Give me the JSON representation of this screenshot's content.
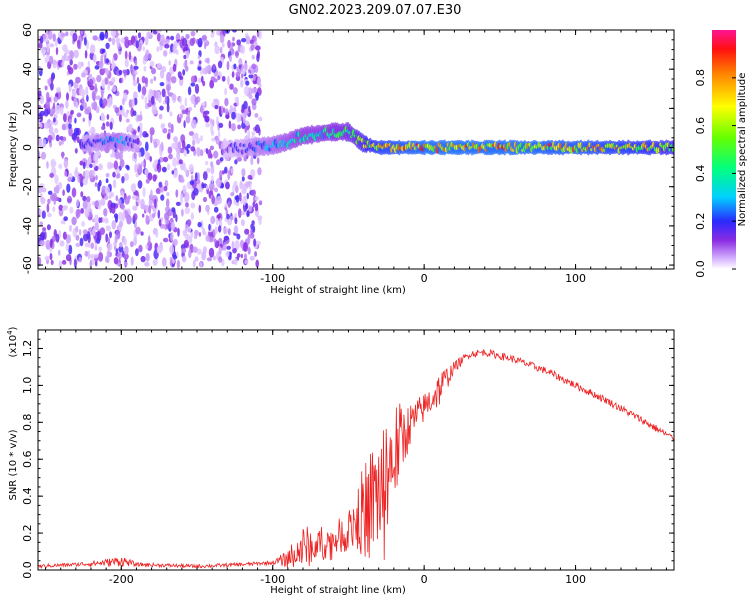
{
  "title": "GN02.2023.209.07.07.E30",
  "chart_data": [
    {
      "type": "heatmap",
      "xlabel": "Height of straight line (km)",
      "ylabel": "Frequency (Hz)",
      "xlim": [
        -255,
        165
      ],
      "ylim": [
        -62,
        60
      ],
      "xticks": [
        -200,
        -100,
        0,
        100
      ],
      "xtick_labels": [
        "-200",
        "-100",
        "0",
        "100"
      ],
      "yticks": [
        60,
        40,
        20,
        0,
        -20,
        -40,
        -60
      ],
      "ytick_labels": [
        "60",
        "40",
        "20",
        "0",
        "-20",
        "-40",
        "-60"
      ],
      "colorbar": {
        "label": "Normalized spectral amplitude",
        "ticks": [
          0.0,
          0.2,
          0.4,
          0.6,
          0.8
        ],
        "tick_labels": [
          "0.0",
          "0.2",
          "0.4",
          "0.6",
          "0.8"
        ],
        "range": [
          0,
          1
        ],
        "colormap": "rainbow-white-purple-blue-cyan-green-yellow-red-pink"
      },
      "noise_regions": [
        {
          "x_range": [
            -255,
            -108
          ],
          "y_range": [
            -60,
            60
          ]
        }
      ],
      "signal_ridge": [
        {
          "x": -225,
          "y": 2,
          "amplitude": 0.2
        },
        {
          "x": -210,
          "y": 3,
          "amplitude": 0.3
        },
        {
          "x": -200,
          "y": 3,
          "amplitude": 0.3
        },
        {
          "x": -190,
          "y": 2,
          "amplitude": 0.2
        },
        {
          "x": -130,
          "y": -1,
          "amplitude": 0.15
        },
        {
          "x": -115,
          "y": 0,
          "amplitude": 0.25
        },
        {
          "x": -100,
          "y": 1,
          "amplitude": 0.35
        },
        {
          "x": -90,
          "y": 3,
          "amplitude": 0.4
        },
        {
          "x": -80,
          "y": 6,
          "amplitude": 0.45
        },
        {
          "x": -70,
          "y": 7,
          "amplitude": 0.45
        },
        {
          "x": -60,
          "y": 8,
          "amplitude": 0.5
        },
        {
          "x": -50,
          "y": 8,
          "amplitude": 0.55
        },
        {
          "x": -40,
          "y": 2,
          "amplitude": 0.7
        },
        {
          "x": -30,
          "y": 0,
          "amplitude": 0.85
        },
        {
          "x": 0,
          "y": 0,
          "amplitude": 0.95
        },
        {
          "x": 50,
          "y": 0,
          "amplitude": 0.95
        },
        {
          "x": 100,
          "y": 0,
          "amplitude": 0.9
        },
        {
          "x": 150,
          "y": 0,
          "amplitude": 0.8
        },
        {
          "x": 165,
          "y": 0,
          "amplitude": 0.7
        }
      ]
    },
    {
      "type": "line",
      "xlabel": "Height of straight line (km)",
      "ylabel": "SNR (10 * v/v)",
      "y_multiplier": "(x10",
      "y_multiplier_exp": "4",
      "y_multiplier_close": ")",
      "xlim": [
        -255,
        165
      ],
      "ylim": [
        0,
        1.3
      ],
      "xticks": [
        -200,
        -100,
        0,
        100
      ],
      "xtick_labels": [
        "-200",
        "-100",
        "0",
        "100"
      ],
      "yticks": [
        0.0,
        0.2,
        0.4,
        0.6,
        0.8,
        1.0,
        1.2
      ],
      "ytick_labels": [
        "0.0",
        "0.2",
        "0.4",
        "0.6",
        "0.8",
        "1.0",
        "1.2"
      ],
      "line_color": "#ee2222",
      "series": [
        {
          "x": [
            -255,
            -230,
            -210,
            -200,
            -190,
            -150,
            -120,
            -100,
            -90,
            -80,
            -70,
            -60,
            -50,
            -40,
            -30,
            -20,
            -10,
            0,
            10,
            20,
            30,
            40,
            60,
            80,
            100,
            120,
            140,
            165
          ],
          "y": [
            0.02,
            0.03,
            0.04,
            0.05,
            0.03,
            0.02,
            0.03,
            0.04,
            0.06,
            0.12,
            0.14,
            0.16,
            0.22,
            0.32,
            0.42,
            0.62,
            0.78,
            0.88,
            0.98,
            1.1,
            1.17,
            1.18,
            1.14,
            1.08,
            1.0,
            0.92,
            0.83,
            0.71
          ],
          "noise_amplitude": [
            0.01,
            0.01,
            0.02,
            0.03,
            0.01,
            0.01,
            0.01,
            0.01,
            0.05,
            0.12,
            0.1,
            0.08,
            0.12,
            0.25,
            0.35,
            0.3,
            0.12,
            0.08,
            0.1,
            0.03,
            0.02,
            0.02,
            0.02,
            0.02,
            0.02,
            0.02,
            0.02,
            0.02
          ]
        }
      ]
    }
  ]
}
